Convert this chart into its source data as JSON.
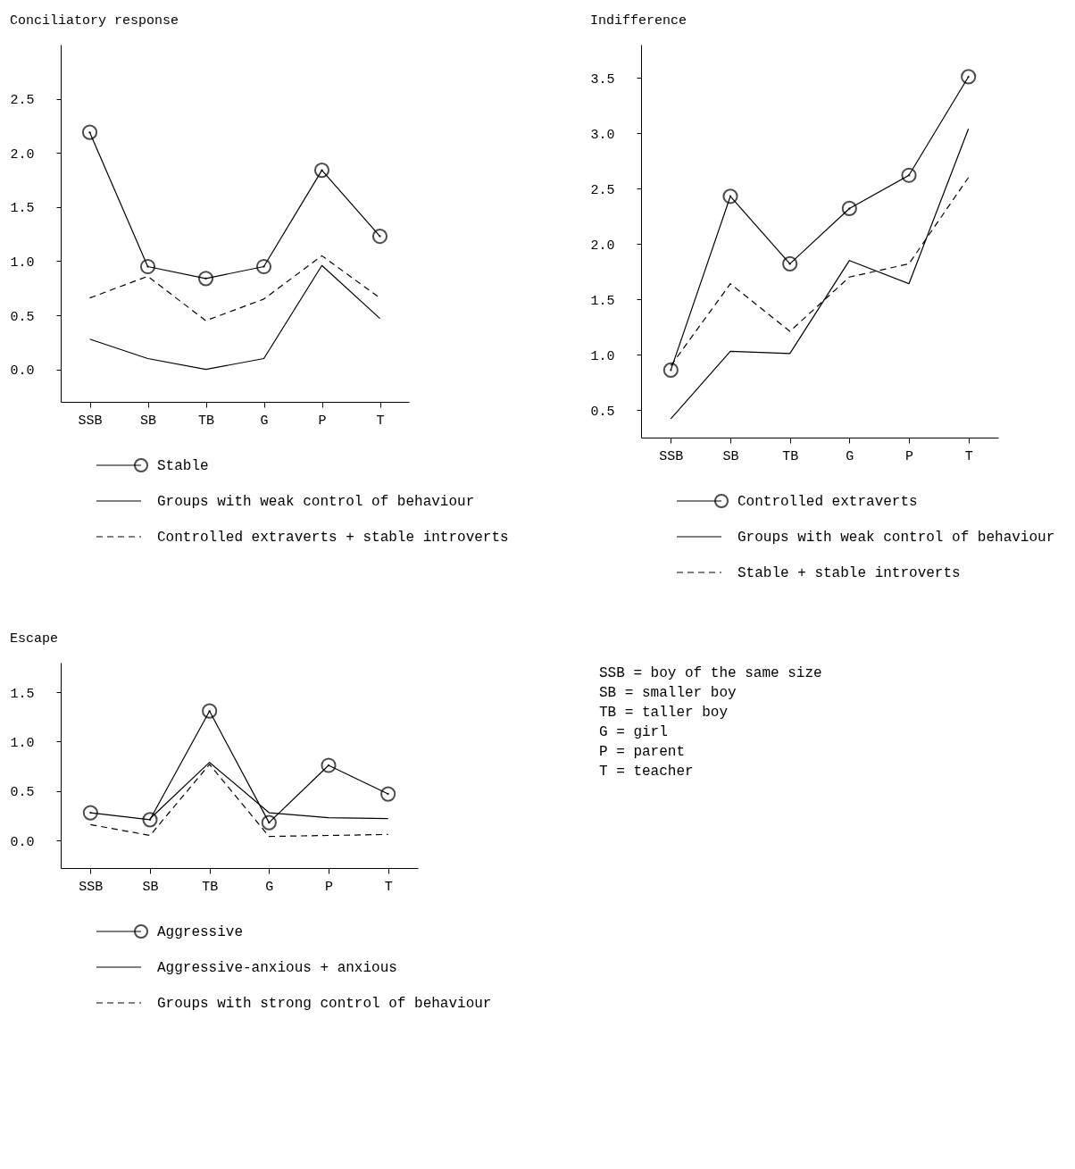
{
  "chart_data": [
    {
      "type": "line",
      "title": "Conciliatory response",
      "categories": [
        "SSB",
        "SB",
        "TB",
        "G",
        "P",
        "T"
      ],
      "ylim": [
        -0.3,
        3.0
      ],
      "yticks": [
        {
          "value": 0,
          "label": "0.0"
        },
        0.5,
        {
          "value": 1,
          "label": "1.0"
        },
        1.5,
        {
          "value": 2,
          "label": "2.0"
        },
        2.5
      ],
      "grid": false,
      "legend": "bottom",
      "series": [
        {
          "name": "Stable",
          "color": "#000000",
          "marker": "circle",
          "line_style": "solid",
          "values": [
            2.19,
            0.95,
            0.84,
            0.95,
            1.84,
            1.23
          ]
        },
        {
          "name": "Groups with weak control of behaviour",
          "color": "#000000",
          "marker": "none",
          "line_style": "solid",
          "values": [
            0.28,
            0.1,
            0.0,
            0.1,
            0.96,
            0.47
          ]
        },
        {
          "name": "Controlled extraverts + stable introverts",
          "color": "#000000",
          "marker": "none",
          "line_style": "dashed",
          "values": [
            0.66,
            0.86,
            0.45,
            0.65,
            1.05,
            0.66
          ]
        }
      ]
    },
    {
      "type": "line",
      "title": "Indifference",
      "categories": [
        "SSB",
        "SB",
        "TB",
        "G",
        "P",
        "T"
      ],
      "ylim": [
        0.25,
        3.8
      ],
      "yticks": [
        0.5,
        {
          "value": 1,
          "label": "1.0"
        },
        1.5,
        {
          "value": 2,
          "label": "2.0"
        },
        2.5,
        {
          "value": 3,
          "label": "3.0"
        },
        3.5
      ],
      "grid": false,
      "legend": "bottom",
      "series": [
        {
          "name": "Controlled extraverts",
          "color": "#000000",
          "marker": "circle",
          "line_style": "solid",
          "values": [
            0.86,
            2.43,
            1.82,
            2.32,
            2.62,
            3.51
          ]
        },
        {
          "name": "Groups with weak control of behaviour",
          "color": "#000000",
          "marker": "none",
          "line_style": "solid",
          "values": [
            0.42,
            1.03,
            1.01,
            1.85,
            1.64,
            3.04
          ]
        },
        {
          "name": "Stable + stable introverts",
          "color": "#000000",
          "marker": "none",
          "line_style": "dashed",
          "values": [
            0.9,
            1.64,
            1.21,
            1.7,
            1.82,
            2.6
          ]
        }
      ]
    },
    {
      "type": "line",
      "title": "Escape",
      "categories": [
        "SSB",
        "SB",
        "TB",
        "G",
        "P",
        "T"
      ],
      "ylim": [
        -0.28,
        1.8
      ],
      "yticks": [
        {
          "value": 0,
          "label": "0.0"
        },
        0.5,
        {
          "value": 1,
          "label": "1.0"
        },
        1.5
      ],
      "grid": false,
      "legend": "bottom",
      "series": [
        {
          "name": "Aggressive",
          "color": "#000000",
          "marker": "circle",
          "line_style": "solid",
          "values": [
            0.28,
            0.21,
            1.31,
            0.18,
            0.76,
            0.47
          ]
        },
        {
          "name": "Aggressive-anxious + anxious",
          "color": "#000000",
          "marker": "none",
          "line_style": "solid",
          "values": [
            null,
            0.22,
            0.79,
            0.28,
            0.23,
            0.22
          ]
        },
        {
          "name": "Groups with strong control of behaviour",
          "color": "#000000",
          "marker": "none",
          "line_style": "dashed",
          "values": [
            0.16,
            0.05,
            0.77,
            0.04,
            0.05,
            0.06
          ]
        }
      ],
      "annotations": [
        "SSB = boy of the same size",
        " SB = smaller boy",
        " TB = taller boy",
        "  G = girl",
        "  P = parent",
        "  T = teacher"
      ]
    }
  ]
}
